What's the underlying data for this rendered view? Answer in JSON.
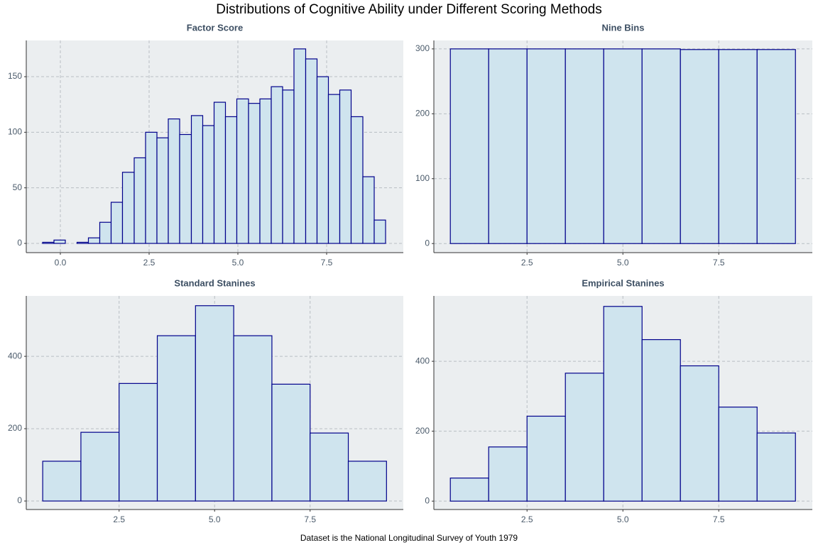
{
  "title": "Distributions of Cognitive Ability under Different Scoring Methods",
  "caption": "Dataset is the National Longitudinal Survey of Youth 1979",
  "chart_data": [
    {
      "type": "histogram",
      "title": "Factor Score",
      "bins": [
        -0.5,
        -0.18,
        0.14,
        0.47,
        0.79,
        1.11,
        1.43,
        1.75,
        2.08,
        2.4,
        2.72,
        3.04,
        3.36,
        3.69,
        4.01,
        4.33,
        4.65,
        4.97,
        5.3,
        5.62,
        5.94,
        6.26,
        6.58,
        6.91,
        7.23,
        7.55,
        7.87,
        8.19,
        8.52,
        8.84,
        9.16
      ],
      "values": [
        1,
        3,
        0,
        1,
        5,
        19,
        37,
        64,
        77,
        100,
        95,
        112,
        98,
        115,
        106,
        127,
        114,
        130,
        126,
        130,
        141,
        138,
        175,
        166,
        150,
        134,
        138,
        114,
        60,
        21
      ],
      "xlim": [
        -0.96,
        9.66
      ],
      "xticks": [
        {
          "value": 0,
          "label": "0.0"
        },
        2.5,
        {
          "value": 5,
          "label": "5.0"
        },
        7.5
      ],
      "ylim": [
        -8.3,
        182.6
      ],
      "yticks": [
        0,
        50,
        100,
        150
      ],
      "color": "#cfe4ee",
      "edgecolor": "#00008b",
      "grid": true
    },
    {
      "type": "histogram",
      "title": "Nine Bins",
      "bins": [
        0.5,
        1.5,
        2.5,
        3.5,
        4.5,
        5.5,
        6.5,
        7.5,
        8.5,
        9.5
      ],
      "values": [
        300,
        300,
        300,
        300,
        300,
        300,
        299,
        299,
        299
      ],
      "xlim": [
        0.07,
        9.94
      ],
      "xticks": [
        2.5,
        {
          "value": 5,
          "label": "5.0"
        },
        7.5
      ],
      "ylim": [
        -14,
        313
      ],
      "yticks": [
        0,
        100,
        200,
        300
      ],
      "color": "#cfe4ee",
      "edgecolor": "#00008b",
      "grid": true
    },
    {
      "type": "histogram",
      "title": "Standard Stanines",
      "bins": [
        0.5,
        1.5,
        2.5,
        3.5,
        4.5,
        5.5,
        6.5,
        7.5,
        8.5,
        9.5
      ],
      "values": [
        110,
        190,
        325,
        457,
        540,
        457,
        323,
        188,
        110
      ],
      "xlim": [
        0.07,
        9.94
      ],
      "xticks": [
        2.5,
        {
          "value": 5,
          "label": "5.0"
        },
        7.5
      ],
      "ylim": [
        -23.5,
        567
      ],
      "yticks": [
        0,
        200,
        400
      ],
      "color": "#cfe4ee",
      "edgecolor": "#00008b",
      "grid": true
    },
    {
      "type": "histogram",
      "title": "Empirical Stanines",
      "bins": [
        0.5,
        1.5,
        2.5,
        3.5,
        4.5,
        5.5,
        6.5,
        7.5,
        8.5,
        9.5
      ],
      "values": [
        66,
        155,
        243,
        366,
        557,
        462,
        387,
        269,
        195
      ],
      "xlim": [
        0.07,
        9.94
      ],
      "xticks": [
        2.5,
        {
          "value": 5,
          "label": "5.0"
        },
        7.5
      ],
      "ylim": [
        -24,
        587
      ],
      "yticks": [
        0,
        200,
        400
      ],
      "color": "#cfe4ee",
      "edgecolor": "#00008b",
      "grid": true
    }
  ]
}
